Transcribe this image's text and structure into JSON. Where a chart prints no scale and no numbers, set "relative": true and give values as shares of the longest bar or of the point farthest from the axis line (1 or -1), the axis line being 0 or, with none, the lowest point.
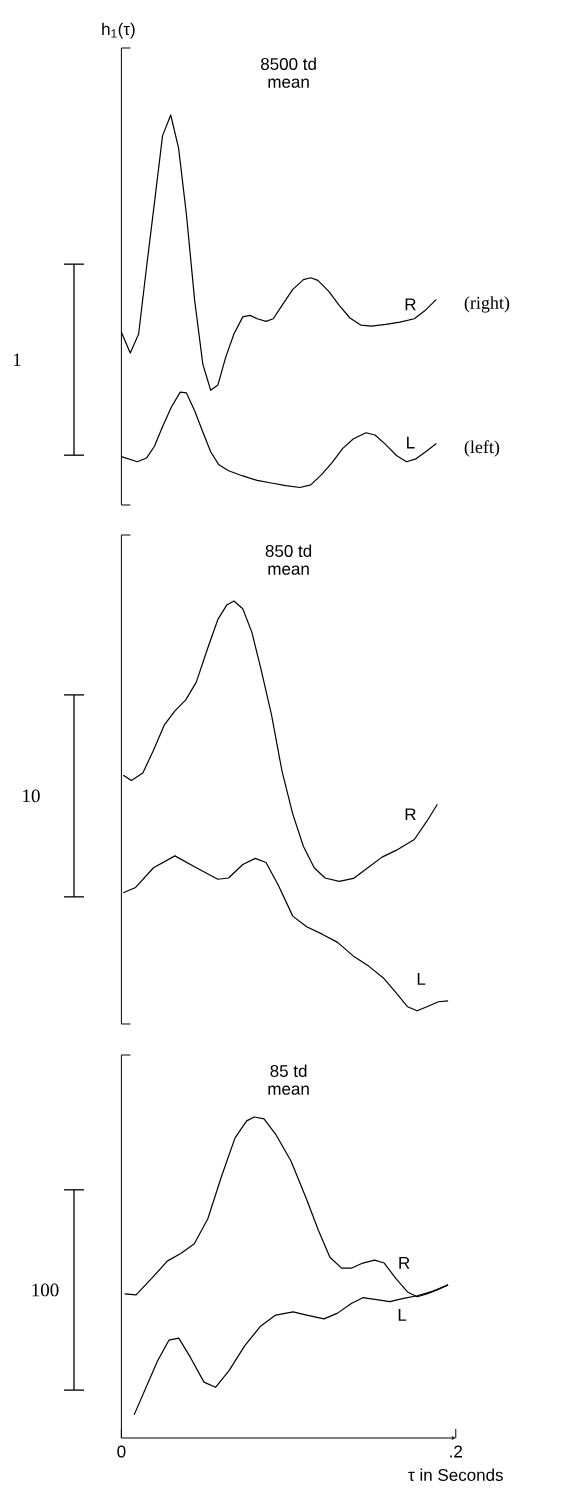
{
  "chart_data": [
    {
      "type": "line",
      "title": "8500 td",
      "subtitle": "mean",
      "ylabel": "h$_{1}$(τ)",
      "relative": true,
      "xlim": [
        0,
        0.2
      ],
      "tick_labels": false,
      "annotations": [
        "1",
        {
          "text": "(right)",
          "x": 0.1884,
          "y": 0.505
        },
        {
          "text": "(left)",
          "x": 0.1884,
          "y": 0.118
        }
      ],
      "series": [
        {
          "name": "R",
          "color": "#000000",
          "x": [
            0,
            0.0053,
            0.0103,
            0.015,
            0.0197,
            0.0246,
            0.0295,
            0.0342,
            0.0389,
            0.0438,
            0.0487,
            0.0534,
            0.0577,
            0.0624,
            0.0673,
            0.0726,
            0.0769,
            0.0812,
            0.0865,
            0.0908,
            0.0961,
            0.1025,
            0.1089,
            0.1132,
            0.1175,
            0.1239,
            0.1303,
            0.1367,
            0.1431,
            0.1495,
            0.1581,
            0.1666,
            0.1752,
            0.1816,
            0.1884
          ],
          "values": [
            0.417,
            0.361,
            0.412,
            0.59,
            0.762,
            0.944,
            1.0,
            0.911,
            0.733,
            0.503,
            0.331,
            0.261,
            0.275,
            0.35,
            0.412,
            0.458,
            0.462,
            0.453,
            0.446,
            0.453,
            0.489,
            0.532,
            0.558,
            0.563,
            0.556,
            0.527,
            0.489,
            0.455,
            0.436,
            0.433,
            0.438,
            0.444,
            0.453,
            0.475,
            0.505
          ]
        },
        {
          "name": "L",
          "color": "#000000",
          "x": [
            0,
            0.0096,
            0.015,
            0.0197,
            0.0246,
            0.0299,
            0.0352,
            0.0389,
            0.0438,
            0.0487,
            0.0534,
            0.0581,
            0.0641,
            0.0726,
            0.0812,
            0.0897,
            0.0983,
            0.1068,
            0.1132,
            0.1196,
            0.126,
            0.1324,
            0.1388,
            0.1463,
            0.1517,
            0.1581,
            0.1645,
            0.1705,
            0.1762,
            0.1826,
            0.1884
          ],
          "values": [
            0.083,
            0.069,
            0.079,
            0.11,
            0.163,
            0.216,
            0.256,
            0.254,
            0.206,
            0.149,
            0.096,
            0.062,
            0.045,
            0.031,
            0.019,
            0.012,
            0.005,
            0,
            0.007,
            0.034,
            0.067,
            0.105,
            0.131,
            0.147,
            0.141,
            0.115,
            0.086,
            0.069,
            0.077,
            0.098,
            0.118
          ]
        }
      ]
    },
    {
      "type": "line",
      "title": "850 td",
      "subtitle": "mean",
      "relative": true,
      "xlim": [
        0,
        0.2
      ],
      "tick_labels": false,
      "annotations": [
        "10"
      ],
      "series": [
        {
          "name": "R",
          "color": "#000000",
          "x": [
            0.0011,
            0.006,
            0.0128,
            0.0192,
            0.0256,
            0.032,
            0.0384,
            0.0448,
            0.0513,
            0.0577,
            0.063,
            0.0673,
            0.0726,
            0.078,
            0.0833,
            0.0897,
            0.0961,
            0.1025,
            0.1089,
            0.1153,
            0.1218,
            0.1303,
            0.1388,
            0.1474,
            0.1559,
            0.1645,
            0.1752,
            0.1826,
            0.189
          ],
          "values": [
            0.575,
            0.562,
            0.58,
            0.636,
            0.697,
            0.732,
            0.758,
            0.802,
            0.881,
            0.955,
            0.99,
            1.0,
            0.981,
            0.924,
            0.837,
            0.724,
            0.584,
            0.48,
            0.401,
            0.349,
            0.324,
            0.316,
            0.323,
            0.349,
            0.375,
            0.392,
            0.418,
            0.462,
            0.504
          ]
        },
        {
          "name": "L",
          "color": "#000000",
          "x": [
            0.0011,
            0.0085,
            0.0192,
            0.032,
            0.0448,
            0.0577,
            0.0641,
            0.0726,
            0.0801,
            0.0865,
            0.094,
            0.1025,
            0.1108,
            0.1201,
            0.1293,
            0.1386,
            0.1479,
            0.1572,
            0.1641,
            0.1711,
            0.1769,
            0.1827,
            0.1896,
            0.1954
          ],
          "values": [
            0.288,
            0.301,
            0.349,
            0.378,
            0.349,
            0.321,
            0.324,
            0.357,
            0.372,
            0.362,
            0.305,
            0.231,
            0.205,
            0.187,
            0.167,
            0.134,
            0.109,
            0.078,
            0.045,
            0.01,
            0,
            0.01,
            0.022,
            0.024
          ]
        }
      ]
    },
    {
      "type": "line",
      "title": "85 td",
      "subtitle": "mean",
      "xlabel": "τ in Seconds",
      "relative": true,
      "xlim": [
        0,
        0.2
      ],
      "xticks": [
        {
          "value": 0,
          "label": "0"
        },
        {
          "value": 0.2,
          "label": ".2"
        }
      ],
      "tick_labels": "x",
      "annotations": [
        "100"
      ],
      "series": [
        {
          "name": "R",
          "color": "#000000",
          "x": [
            0.0019,
            0.0088,
            0.0181,
            0.0274,
            0.0355,
            0.0436,
            0.0517,
            0.0598,
            0.0679,
            0.0749,
            0.0795,
            0.0853,
            0.0923,
            0.1015,
            0.1108,
            0.1178,
            0.1247,
            0.1317,
            0.1375,
            0.1444,
            0.1514,
            0.1572,
            0.1641,
            0.1711,
            0.1769,
            0.1827,
            0.1896,
            0.1954
          ],
          "values": [
            0.449,
            0.446,
            0.497,
            0.551,
            0.575,
            0.605,
            0.683,
            0.814,
            0.934,
            0.988,
            1.0,
            0.994,
            0.946,
            0.862,
            0.743,
            0.647,
            0.563,
            0.529,
            0.529,
            0.545,
            0.554,
            0.545,
            0.497,
            0.455,
            0.44,
            0.449,
            0.463,
            0.477
          ]
        },
        {
          "name": "L",
          "color": "#000000",
          "x": [
            0.0076,
            0.0146,
            0.0216,
            0.0285,
            0.0343,
            0.0413,
            0.0494,
            0.0563,
            0.0644,
            0.0737,
            0.083,
            0.0923,
            0.1027,
            0.1108,
            0.1212,
            0.1293,
            0.1375,
            0.1444,
            0.1525,
            0.1606,
            0.1688,
            0.1769,
            0.185,
            0.1954
          ],
          "values": [
            0.072,
            0.156,
            0.24,
            0.305,
            0.311,
            0.251,
            0.174,
            0.158,
            0.21,
            0.287,
            0.347,
            0.383,
            0.393,
            0.383,
            0.371,
            0.389,
            0.419,
            0.437,
            0.431,
            0.425,
            0.435,
            0.443,
            0.455,
            0.477
          ]
        }
      ]
    }
  ]
}
